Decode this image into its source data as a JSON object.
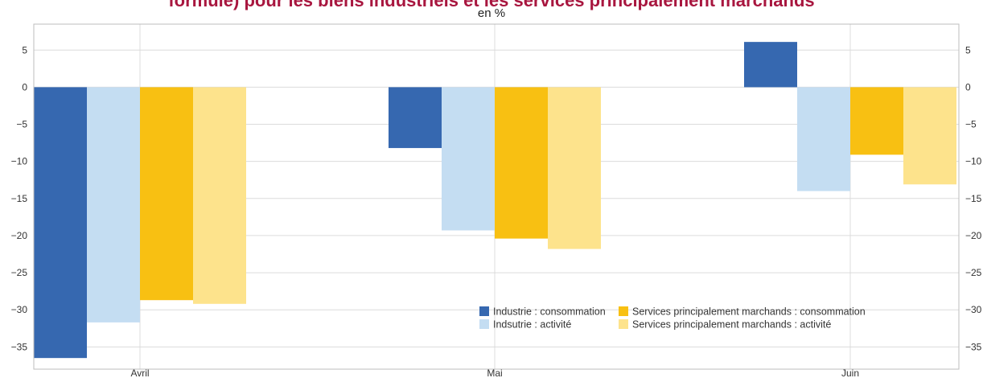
{
  "chart_data": {
    "type": "bar",
    "title": "formule) pour les biens industriels et les services principalement marchands",
    "subtitle": "en %",
    "xlabel": "",
    "ylabel": "",
    "categories": [
      "Avril",
      "Mai",
      "Juin"
    ],
    "ylim": [
      -38,
      8.5
    ],
    "yticks": [
      5,
      0,
      -5,
      -10,
      -15,
      -20,
      -25,
      -30,
      -35
    ],
    "ytick_labels": [
      "5",
      "0",
      "−5",
      "−10",
      "−15",
      "−20",
      "−25",
      "−30",
      "−35"
    ],
    "grid": true,
    "legend_position": "bottom-right",
    "series": [
      {
        "name": "Industrie : consommation",
        "color": "#3668b0",
        "values": [
          -36.5,
          -8.2,
          6.1
        ]
      },
      {
        "name": "Indsutrie : activité",
        "color": "#c4ddf2",
        "values": [
          -31.7,
          -19.3,
          -14.0
        ]
      },
      {
        "name": "Services principalement marchands : consommation",
        "color": "#f8c012",
        "values": [
          -28.7,
          -20.4,
          -9.1
        ]
      },
      {
        "name": "Services principalement marchands : activité",
        "color": "#fde38c",
        "values": [
          -29.2,
          -21.8,
          -13.1
        ]
      }
    ]
  }
}
